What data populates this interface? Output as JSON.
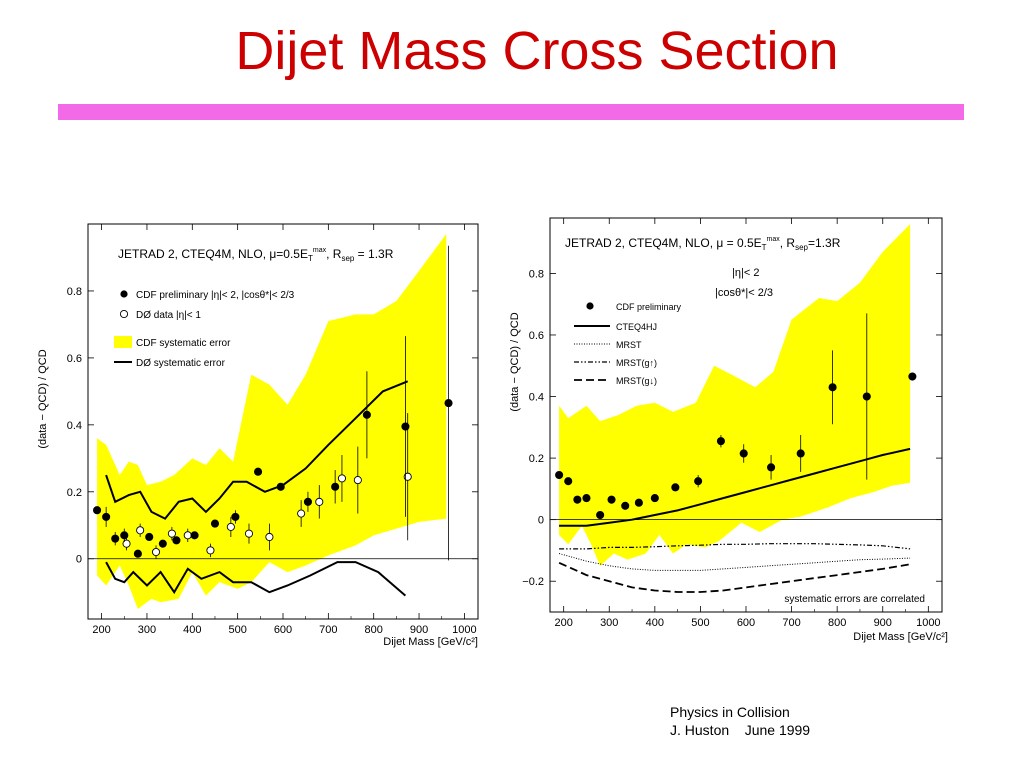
{
  "slide": {
    "title": "Dijet Mass Cross Section",
    "accent_color": "#f36ae8",
    "title_color": "#cc0000",
    "footer": {
      "line1": "Physics in Collision",
      "line2": "J. Huston    June 1999"
    }
  },
  "chart_data": [
    {
      "type": "scatter",
      "ylabel": "(data − QCD) / QCD",
      "xlabel": "Dijet Mass [GeV/c²]",
      "xlim": [
        170,
        1030
      ],
      "ylim": [
        -0.18,
        1.0
      ],
      "xticks": [
        200,
        300,
        400,
        500,
        600,
        700,
        800,
        900,
        1000
      ],
      "yticks": [
        0,
        0.2,
        0.4,
        0.6,
        0.8
      ],
      "header": "JETRAD 2, CTEQ4M, NLO, μ=0.5E",
      "header_sub": "T",
      "header_sup": "max",
      "header_tail": ", R",
      "header_sub2": "sep",
      "header_tail2": " = 1.3R",
      "legend": {
        "cdf_points": "CDF preliminary  |η|< 2, |cosθ*|< 2/3",
        "d0_points": "DØ data           |η|< 1",
        "cdf_band": "CDF systematic error",
        "d0_band": "DØ systematic error"
      },
      "band_color": "#ffff00",
      "cdf_band_upper": [
        [
          190,
          0.36
        ],
        [
          210,
          0.34
        ],
        [
          240,
          0.25
        ],
        [
          260,
          0.29
        ],
        [
          280,
          0.28
        ],
        [
          300,
          0.22
        ],
        [
          330,
          0.23
        ],
        [
          360,
          0.25
        ],
        [
          400,
          0.3
        ],
        [
          430,
          0.28
        ],
        [
          460,
          0.33
        ],
        [
          490,
          0.29
        ],
        [
          530,
          0.55
        ],
        [
          570,
          0.52
        ],
        [
          610,
          0.46
        ],
        [
          650,
          0.55
        ],
        [
          700,
          0.71
        ],
        [
          760,
          0.73
        ],
        [
          800,
          0.73
        ],
        [
          850,
          0.77
        ],
        [
          900,
          0.86
        ],
        [
          960,
          0.97
        ]
      ],
      "cdf_band_lower": [
        [
          190,
          -0.05
        ],
        [
          210,
          -0.08
        ],
        [
          240,
          -0.02
        ],
        [
          260,
          -0.08
        ],
        [
          280,
          -0.15
        ],
        [
          310,
          -0.12
        ],
        [
          330,
          -0.13
        ],
        [
          370,
          -0.12
        ],
        [
          400,
          -0.04
        ],
        [
          430,
          -0.11
        ],
        [
          460,
          -0.07
        ],
        [
          500,
          -0.09
        ],
        [
          530,
          -0.07
        ],
        [
          570,
          -0.01
        ],
        [
          610,
          -0.04
        ],
        [
          650,
          -0.02
        ],
        [
          700,
          0.01
        ],
        [
          760,
          0.04
        ],
        [
          800,
          0.07
        ],
        [
          850,
          0.09
        ],
        [
          900,
          0.11
        ],
        [
          960,
          0.12
        ]
      ],
      "d0_upper": [
        [
          210,
          0.25
        ],
        [
          230,
          0.17
        ],
        [
          260,
          0.19
        ],
        [
          285,
          0.2
        ],
        [
          310,
          0.14
        ],
        [
          340,
          0.12
        ],
        [
          370,
          0.17
        ],
        [
          400,
          0.18
        ],
        [
          430,
          0.14
        ],
        [
          460,
          0.18
        ],
        [
          490,
          0.23
        ],
        [
          520,
          0.23
        ],
        [
          560,
          0.2
        ],
        [
          600,
          0.22
        ],
        [
          650,
          0.27
        ],
        [
          700,
          0.34
        ],
        [
          760,
          0.42
        ],
        [
          820,
          0.5
        ],
        [
          875,
          0.53
        ]
      ],
      "d0_lower": [
        [
          210,
          -0.01
        ],
        [
          230,
          -0.06
        ],
        [
          250,
          -0.07
        ],
        [
          270,
          -0.04
        ],
        [
          300,
          -0.08
        ],
        [
          330,
          -0.04
        ],
        [
          360,
          -0.1
        ],
        [
          390,
          -0.03
        ],
        [
          420,
          -0.06
        ],
        [
          460,
          -0.04
        ],
        [
          490,
          -0.07
        ],
        [
          530,
          -0.07
        ],
        [
          570,
          -0.1
        ],
        [
          610,
          -0.08
        ],
        [
          660,
          -0.05
        ],
        [
          720,
          -0.01
        ],
        [
          760,
          -0.01
        ],
        [
          810,
          -0.04
        ],
        [
          870,
          -0.11
        ]
      ],
      "cdf_points": [
        {
          "x": 190,
          "y": 0.145,
          "err": 0.0
        },
        {
          "x": 210,
          "y": 0.125,
          "err": 0.03
        },
        {
          "x": 230,
          "y": 0.06,
          "err": 0.02
        },
        {
          "x": 250,
          "y": 0.07,
          "err": 0.02
        },
        {
          "x": 280,
          "y": 0.015,
          "err": 0.0
        },
        {
          "x": 305,
          "y": 0.065,
          "err": 0.0
        },
        {
          "x": 335,
          "y": 0.045,
          "err": 0.0
        },
        {
          "x": 365,
          "y": 0.055,
          "err": 0.0
        },
        {
          "x": 405,
          "y": 0.07,
          "err": 0.0
        },
        {
          "x": 450,
          "y": 0.105,
          "err": 0.0
        },
        {
          "x": 495,
          "y": 0.125,
          "err": 0.02
        },
        {
          "x": 545,
          "y": 0.26,
          "err": 0.0
        },
        {
          "x": 595,
          "y": 0.215,
          "err": 0.0
        },
        {
          "x": 655,
          "y": 0.17,
          "err": 0.03
        },
        {
          "x": 715,
          "y": 0.215,
          "err": 0.05
        },
        {
          "x": 785,
          "y": 0.43,
          "err": 0.13
        },
        {
          "x": 870,
          "y": 0.395,
          "err": 0.27
        },
        {
          "x": 965,
          "y": 0.465,
          "err": 0.47
        }
      ],
      "d0_points": [
        {
          "x": 255,
          "y": 0.045,
          "err": 0.02
        },
        {
          "x": 285,
          "y": 0.085,
          "err": 0.02
        },
        {
          "x": 320,
          "y": 0.02,
          "err": 0.02
        },
        {
          "x": 355,
          "y": 0.075,
          "err": 0.02
        },
        {
          "x": 390,
          "y": 0.07,
          "err": 0.02
        },
        {
          "x": 440,
          "y": 0.025,
          "err": 0.02
        },
        {
          "x": 485,
          "y": 0.095,
          "err": 0.03
        },
        {
          "x": 525,
          "y": 0.075,
          "err": 0.03
        },
        {
          "x": 570,
          "y": 0.065,
          "err": 0.04
        },
        {
          "x": 640,
          "y": 0.135,
          "err": 0.04
        },
        {
          "x": 680,
          "y": 0.17,
          "err": 0.05
        },
        {
          "x": 730,
          "y": 0.24,
          "err": 0.07
        },
        {
          "x": 765,
          "y": 0.235,
          "err": 0.1
        },
        {
          "x": 875,
          "y": 0.245,
          "err": 0.19
        }
      ]
    },
    {
      "type": "scatter",
      "ylabel": "(data − QCD) / QCD",
      "xlabel": "Dijet Mass [GeV/c²]",
      "xlim": [
        170,
        1030
      ],
      "ylim": [
        -0.3,
        0.98
      ],
      "xticks": [
        200,
        300,
        400,
        500,
        600,
        700,
        800,
        900,
        1000
      ],
      "yticks": [
        -0.2,
        0,
        0.2,
        0.4,
        0.6,
        0.8
      ],
      "header": "JETRAD 2, CTEQ4M, NLO, μ = 0.5E",
      "header_sub": "T",
      "header_sup": "max",
      "header_tail": ", R",
      "header_sub2": "sep",
      "header_tail2": "=1.3R",
      "cuts_line1": "|η|< 2",
      "cuts_line2": "|cosθ*|< 2/3",
      "legend": {
        "cdf_points": "CDF preliminary",
        "cteq4hj": "CTEQ4HJ",
        "mrst": "MRST",
        "mrst_gup": "MRST(g↑)",
        "mrst_gdown": "MRST(g↓)"
      },
      "note": "systematic errors are correlated",
      "band_color": "#ffff00",
      "cdf_band_upper": [
        [
          190,
          0.37
        ],
        [
          210,
          0.33
        ],
        [
          250,
          0.37
        ],
        [
          280,
          0.32
        ],
        [
          320,
          0.34
        ],
        [
          360,
          0.37
        ],
        [
          400,
          0.38
        ],
        [
          440,
          0.35
        ],
        [
          490,
          0.38
        ],
        [
          530,
          0.5
        ],
        [
          570,
          0.47
        ],
        [
          620,
          0.43
        ],
        [
          660,
          0.48
        ],
        [
          700,
          0.65
        ],
        [
          760,
          0.72
        ],
        [
          800,
          0.71
        ],
        [
          850,
          0.77
        ],
        [
          900,
          0.87
        ],
        [
          960,
          0.96
        ]
      ],
      "cdf_band_lower": [
        [
          190,
          -0.05
        ],
        [
          210,
          -0.08
        ],
        [
          240,
          -0.02
        ],
        [
          260,
          -0.08
        ],
        [
          280,
          -0.15
        ],
        [
          310,
          -0.11
        ],
        [
          340,
          -0.13
        ],
        [
          380,
          -0.11
        ],
        [
          410,
          -0.05
        ],
        [
          440,
          -0.11
        ],
        [
          470,
          -0.08
        ],
        [
          510,
          -0.09
        ],
        [
          540,
          -0.07
        ],
        [
          590,
          -0.01
        ],
        [
          630,
          -0.04
        ],
        [
          680,
          0.0
        ],
        [
          720,
          0.01
        ],
        [
          780,
          0.04
        ],
        [
          830,
          0.07
        ],
        [
          880,
          0.09
        ],
        [
          920,
          0.11
        ],
        [
          960,
          0.12
        ]
      ],
      "cdf_points": [
        {
          "x": 190,
          "y": 0.145,
          "err": 0.0
        },
        {
          "x": 210,
          "y": 0.125,
          "err": 0.0
        },
        {
          "x": 230,
          "y": 0.065,
          "err": 0.0
        },
        {
          "x": 250,
          "y": 0.07,
          "err": 0.0
        },
        {
          "x": 280,
          "y": 0.015,
          "err": 0.0
        },
        {
          "x": 305,
          "y": 0.065,
          "err": 0.0
        },
        {
          "x": 335,
          "y": 0.045,
          "err": 0.0
        },
        {
          "x": 365,
          "y": 0.055,
          "err": 0.0
        },
        {
          "x": 400,
          "y": 0.07,
          "err": 0.0
        },
        {
          "x": 445,
          "y": 0.105,
          "err": 0.0
        },
        {
          "x": 495,
          "y": 0.125,
          "err": 0.02
        },
        {
          "x": 545,
          "y": 0.255,
          "err": 0.02
        },
        {
          "x": 595,
          "y": 0.215,
          "err": 0.03
        },
        {
          "x": 655,
          "y": 0.17,
          "err": 0.04
        },
        {
          "x": 720,
          "y": 0.215,
          "err": 0.06
        },
        {
          "x": 790,
          "y": 0.43,
          "err": 0.12
        },
        {
          "x": 865,
          "y": 0.4,
          "err": 0.27
        },
        {
          "x": 965,
          "y": 0.465,
          "err": 0.0
        }
      ],
      "cteq4hj": [
        [
          190,
          -0.02
        ],
        [
          250,
          -0.02
        ],
        [
          300,
          -0.01
        ],
        [
          350,
          0.0
        ],
        [
          400,
          0.015
        ],
        [
          450,
          0.03
        ],
        [
          500,
          0.05
        ],
        [
          550,
          0.07
        ],
        [
          600,
          0.09
        ],
        [
          650,
          0.11
        ],
        [
          700,
          0.13
        ],
        [
          750,
          0.15
        ],
        [
          800,
          0.17
        ],
        [
          850,
          0.19
        ],
        [
          900,
          0.21
        ],
        [
          960,
          0.23
        ]
      ],
      "mrst": [
        [
          190,
          -0.11
        ],
        [
          250,
          -0.135
        ],
        [
          300,
          -0.15
        ],
        [
          350,
          -0.16
        ],
        [
          400,
          -0.165
        ],
        [
          450,
          -0.165
        ],
        [
          500,
          -0.165
        ],
        [
          550,
          -0.16
        ],
        [
          600,
          -0.155
        ],
        [
          650,
          -0.15
        ],
        [
          700,
          -0.145
        ],
        [
          750,
          -0.14
        ],
        [
          800,
          -0.135
        ],
        [
          850,
          -0.13
        ],
        [
          900,
          -0.128
        ],
        [
          960,
          -0.125
        ]
      ],
      "mrst_gup": [
        [
          190,
          -0.095
        ],
        [
          250,
          -0.095
        ],
        [
          300,
          -0.09
        ],
        [
          350,
          -0.09
        ],
        [
          400,
          -0.088
        ],
        [
          450,
          -0.085
        ],
        [
          500,
          -0.083
        ],
        [
          550,
          -0.08
        ],
        [
          600,
          -0.08
        ],
        [
          650,
          -0.078
        ],
        [
          700,
          -0.078
        ],
        [
          750,
          -0.078
        ],
        [
          800,
          -0.08
        ],
        [
          850,
          -0.082
        ],
        [
          900,
          -0.085
        ],
        [
          960,
          -0.095
        ]
      ],
      "mrst_gdown": [
        [
          190,
          -0.14
        ],
        [
          250,
          -0.18
        ],
        [
          300,
          -0.2
        ],
        [
          350,
          -0.22
        ],
        [
          400,
          -0.23
        ],
        [
          450,
          -0.235
        ],
        [
          500,
          -0.235
        ],
        [
          550,
          -0.23
        ],
        [
          600,
          -0.22
        ],
        [
          650,
          -0.21
        ],
        [
          700,
          -0.2
        ],
        [
          750,
          -0.19
        ],
        [
          800,
          -0.18
        ],
        [
          850,
          -0.17
        ],
        [
          900,
          -0.16
        ],
        [
          960,
          -0.145
        ]
      ]
    }
  ]
}
